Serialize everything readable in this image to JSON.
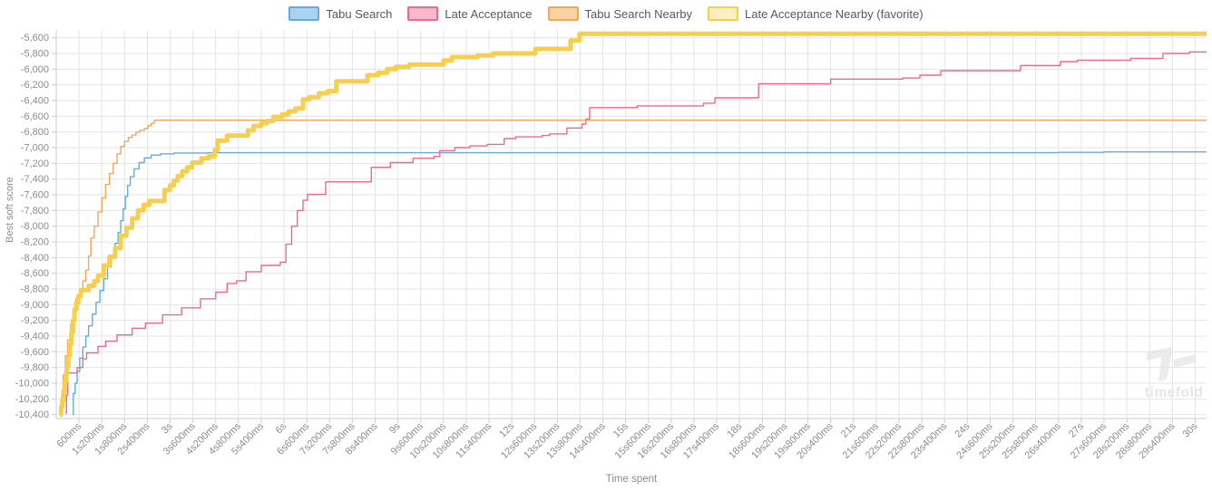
{
  "watermark": {
    "text": "timefold"
  },
  "axes": {
    "x_title": "Time spent",
    "y_title": "Best soft score"
  },
  "chart_data": {
    "type": "line",
    "step": true,
    "xlabel": "Time spent",
    "ylabel": "Best soft score",
    "xlim": [
      0,
      30.3
    ],
    "ylim": [
      -10450,
      -5500
    ],
    "grid": true,
    "legend_position": "top-center",
    "x_tick_times": [
      0.6,
      1.2,
      1.8,
      2.4,
      3,
      3.6,
      4.2,
      4.8,
      5.4,
      6,
      6.6,
      7.2,
      7.8,
      8.4,
      9,
      9.6,
      10.2,
      10.8,
      11.4,
      12,
      12.6,
      13.2,
      13.8,
      14.4,
      15,
      15.6,
      16.2,
      16.8,
      17.4,
      18,
      18.6,
      19.2,
      19.8,
      20.4,
      21,
      21.6,
      22.2,
      22.8,
      23.4,
      24,
      24.6,
      25.2,
      25.8,
      26.4,
      27,
      27.6,
      28.2,
      28.8,
      29.4,
      30
    ],
    "x_tick_labels": [
      "600ms",
      "1s200ms",
      "1s800ms",
      "2s400ms",
      "3s",
      "3s600ms",
      "4s200ms",
      "4s800ms",
      "5s400ms",
      "6s",
      "6s600ms",
      "7s200ms",
      "7s800ms",
      "8s400ms",
      "9s",
      "9s600ms",
      "10s200ms",
      "10s800ms",
      "11s400ms",
      "12s",
      "12s600ms",
      "13s200ms",
      "13s800ms",
      "14s400ms",
      "15s",
      "15s600ms",
      "16s200ms",
      "16s800ms",
      "17s400ms",
      "18s",
      "18s600ms",
      "19s200ms",
      "19s800ms",
      "20s400ms",
      "21s",
      "21s600ms",
      "22s200ms",
      "22s800ms",
      "23s400ms",
      "24s",
      "24s600ms",
      "25s200ms",
      "25s800ms",
      "26s400ms",
      "27s",
      "27s600ms",
      "28s200ms",
      "28s800ms",
      "29s400ms",
      "30s"
    ],
    "y_tick_values": [
      -5600,
      -5800,
      -6000,
      -6200,
      -6400,
      -6600,
      -6800,
      -7000,
      -7200,
      -7400,
      -7600,
      -7800,
      -8000,
      -8200,
      -8400,
      -8600,
      -8800,
      -9000,
      -9200,
      -9400,
      -9600,
      -9800,
      -10000,
      -10200,
      -10400
    ],
    "y_tick_labels": [
      "-5,600",
      "-5,800",
      "-6,000",
      "-6,200",
      "-6,400",
      "-6,600",
      "-6,800",
      "-7,000",
      "-7,200",
      "-7,400",
      "-7,600",
      "-7,800",
      "-8,000",
      "-8,200",
      "-8,400",
      "-8,600",
      "-8,800",
      "-9,000",
      "-9,200",
      "-9,400",
      "-9,600",
      "-9,800",
      "-10,000",
      "-10,200",
      "-10,400"
    ],
    "series": [
      {
        "name": "Tabu Search",
        "color": "#64ACE0",
        "legend_fill": "#ABD3EE",
        "width": 1.4,
        "final_value": -7054,
        "points": [
          [
            0.43,
            -10400
          ],
          [
            0.45,
            -10130
          ],
          [
            0.5,
            -10000
          ],
          [
            0.55,
            -9850
          ],
          [
            0.62,
            -9680
          ],
          [
            0.7,
            -9540
          ],
          [
            0.78,
            -9400
          ],
          [
            0.85,
            -9270
          ],
          [
            0.95,
            -9120
          ],
          [
            1.05,
            -8970
          ],
          [
            1.15,
            -8820
          ],
          [
            1.25,
            -8670
          ],
          [
            1.35,
            -8520
          ],
          [
            1.45,
            -8370
          ],
          [
            1.55,
            -8220
          ],
          [
            1.63,
            -8080
          ],
          [
            1.7,
            -7930
          ],
          [
            1.76,
            -7780
          ],
          [
            1.82,
            -7620
          ],
          [
            1.88,
            -7480
          ],
          [
            1.95,
            -7370
          ],
          [
            2.05,
            -7270
          ],
          [
            2.18,
            -7190
          ],
          [
            2.32,
            -7130
          ],
          [
            2.5,
            -7095
          ],
          [
            2.75,
            -7078
          ],
          [
            3.1,
            -7068
          ],
          [
            4.0,
            -7065
          ],
          [
            26.4,
            -7060
          ],
          [
            27.6,
            -7054
          ]
        ]
      },
      {
        "name": "Late Acceptance",
        "color": "#F0698C",
        "legend_fill": "#F8B9CC",
        "width": 1.4,
        "final_value": -5780,
        "points": [
          [
            0.24,
            -10380
          ],
          [
            0.27,
            -10150
          ],
          [
            0.3,
            -9870
          ],
          [
            0.55,
            -9800
          ],
          [
            0.7,
            -9690
          ],
          [
            0.8,
            -9615
          ],
          [
            1.1,
            -9530
          ],
          [
            1.3,
            -9465
          ],
          [
            1.6,
            -9385
          ],
          [
            2.0,
            -9300
          ],
          [
            2.35,
            -9235
          ],
          [
            2.8,
            -9130
          ],
          [
            3.3,
            -9040
          ],
          [
            3.8,
            -8925
          ],
          [
            4.2,
            -8840
          ],
          [
            4.5,
            -8730
          ],
          [
            4.75,
            -8695
          ],
          [
            5.0,
            -8580
          ],
          [
            5.4,
            -8500
          ],
          [
            5.9,
            -8460
          ],
          [
            6.05,
            -8230
          ],
          [
            6.2,
            -8000
          ],
          [
            6.35,
            -7800
          ],
          [
            6.5,
            -7670
          ],
          [
            6.62,
            -7595
          ],
          [
            7.1,
            -7435
          ],
          [
            8.3,
            -7250
          ],
          [
            8.8,
            -7190
          ],
          [
            9.4,
            -7135
          ],
          [
            9.95,
            -7112
          ],
          [
            10.1,
            -7038
          ],
          [
            10.5,
            -7000
          ],
          [
            10.9,
            -6978
          ],
          [
            11.35,
            -6958
          ],
          [
            11.8,
            -6885
          ],
          [
            12.1,
            -6863
          ],
          [
            12.8,
            -6845
          ],
          [
            13.0,
            -6825
          ],
          [
            13.45,
            -6750
          ],
          [
            13.85,
            -6700
          ],
          [
            13.95,
            -6635
          ],
          [
            14.05,
            -6490
          ],
          [
            15.3,
            -6468
          ],
          [
            17.05,
            -6434
          ],
          [
            17.35,
            -6365
          ],
          [
            18.5,
            -6185
          ],
          [
            20.4,
            -6127
          ],
          [
            22.3,
            -6113
          ],
          [
            22.75,
            -6077
          ],
          [
            23.3,
            -6019
          ],
          [
            25.4,
            -5954
          ],
          [
            26.45,
            -5904
          ],
          [
            26.9,
            -5885
          ],
          [
            28.3,
            -5862
          ],
          [
            29.15,
            -5800
          ],
          [
            29.85,
            -5780
          ]
        ]
      },
      {
        "name": "Tabu Search Nearby",
        "color": "#F5A55C",
        "legend_fill": "#FBD2A0",
        "width": 1.4,
        "final_value": -6650,
        "points": [
          [
            0.1,
            -10400
          ],
          [
            0.14,
            -10150
          ],
          [
            0.18,
            -9900
          ],
          [
            0.24,
            -9650
          ],
          [
            0.3,
            -9450
          ],
          [
            0.38,
            -9250
          ],
          [
            0.45,
            -9060
          ],
          [
            0.52,
            -8925
          ],
          [
            0.62,
            -8800
          ],
          [
            0.7,
            -8700
          ],
          [
            0.78,
            -8560
          ],
          [
            0.85,
            -8380
          ],
          [
            0.91,
            -8150
          ],
          [
            1.0,
            -8000
          ],
          [
            1.1,
            -7820
          ],
          [
            1.2,
            -7640
          ],
          [
            1.3,
            -7470
          ],
          [
            1.4,
            -7330
          ],
          [
            1.5,
            -7200
          ],
          [
            1.6,
            -7080
          ],
          [
            1.7,
            -6985
          ],
          [
            1.8,
            -6920
          ],
          [
            1.9,
            -6870
          ],
          [
            2.0,
            -6840
          ],
          [
            2.1,
            -6805
          ],
          [
            2.2,
            -6780
          ],
          [
            2.32,
            -6755
          ],
          [
            2.42,
            -6720
          ],
          [
            2.5,
            -6690
          ],
          [
            2.58,
            -6650
          ]
        ]
      },
      {
        "name": "Late Acceptance Nearby (favorite)",
        "color": "#F7CF4F",
        "legend_fill": "#FCF0C2",
        "width": 5,
        "final_value": -5550,
        "points": [
          [
            0.1,
            -10400
          ],
          [
            0.13,
            -10300
          ],
          [
            0.16,
            -10215
          ],
          [
            0.19,
            -10100
          ],
          [
            0.22,
            -9980
          ],
          [
            0.25,
            -9880
          ],
          [
            0.28,
            -9790
          ],
          [
            0.32,
            -9650
          ],
          [
            0.36,
            -9500
          ],
          [
            0.4,
            -9350
          ],
          [
            0.44,
            -9200
          ],
          [
            0.48,
            -9060
          ],
          [
            0.53,
            -8975
          ],
          [
            0.58,
            -8890
          ],
          [
            0.65,
            -8815
          ],
          [
            0.85,
            -8760
          ],
          [
            1.0,
            -8700
          ],
          [
            1.1,
            -8630
          ],
          [
            1.25,
            -8500
          ],
          [
            1.4,
            -8390
          ],
          [
            1.55,
            -8280
          ],
          [
            1.7,
            -8120
          ],
          [
            1.85,
            -8020
          ],
          [
            2.0,
            -7900
          ],
          [
            2.15,
            -7800
          ],
          [
            2.3,
            -7730
          ],
          [
            2.45,
            -7680
          ],
          [
            2.85,
            -7540
          ],
          [
            3.0,
            -7480
          ],
          [
            3.1,
            -7420
          ],
          [
            3.2,
            -7360
          ],
          [
            3.32,
            -7300
          ],
          [
            3.45,
            -7250
          ],
          [
            3.58,
            -7190
          ],
          [
            3.82,
            -7135
          ],
          [
            4.02,
            -7108
          ],
          [
            4.18,
            -7030
          ],
          [
            4.25,
            -6910
          ],
          [
            4.5,
            -6845
          ],
          [
            5.05,
            -6780
          ],
          [
            5.2,
            -6723
          ],
          [
            5.4,
            -6690
          ],
          [
            5.55,
            -6660
          ],
          [
            5.72,
            -6608
          ],
          [
            5.95,
            -6577
          ],
          [
            6.12,
            -6538
          ],
          [
            6.3,
            -6500
          ],
          [
            6.5,
            -6385
          ],
          [
            6.67,
            -6357
          ],
          [
            6.92,
            -6308
          ],
          [
            7.15,
            -6280
          ],
          [
            7.38,
            -6155
          ],
          [
            8.2,
            -6077
          ],
          [
            8.48,
            -6046
          ],
          [
            8.72,
            -6000
          ],
          [
            8.95,
            -5970
          ],
          [
            9.3,
            -5942
          ],
          [
            10.2,
            -5890
          ],
          [
            10.42,
            -5846
          ],
          [
            11.1,
            -5826
          ],
          [
            11.5,
            -5800
          ],
          [
            12.62,
            -5742
          ],
          [
            13.55,
            -5635
          ],
          [
            13.78,
            -5550
          ]
        ]
      }
    ]
  }
}
